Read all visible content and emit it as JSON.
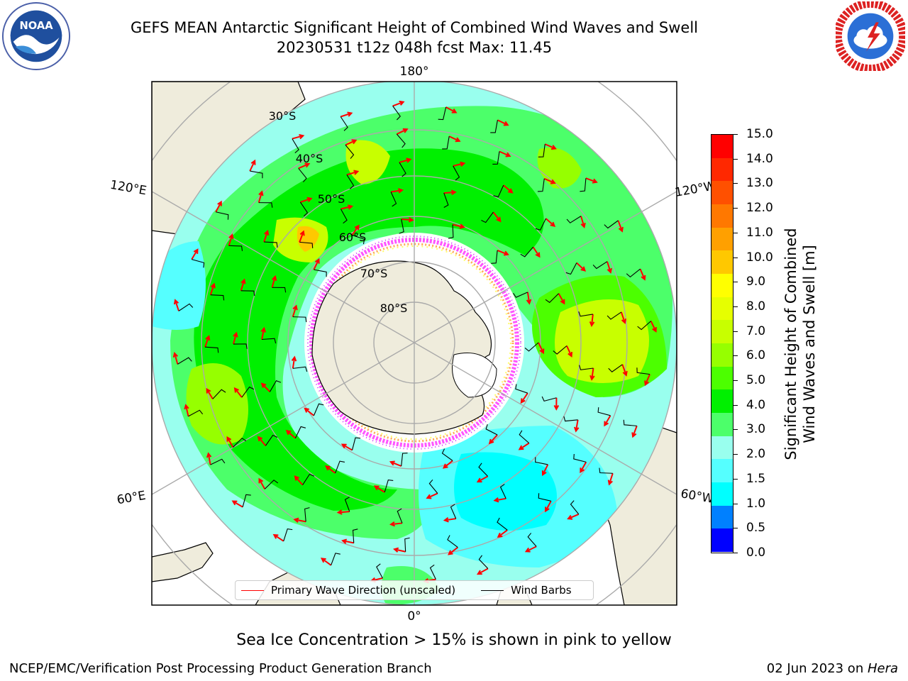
{
  "title_line1": "GEFS MEAN Antarctic Significant Height of Combined Wind Waves and Swell",
  "title_line2": "20230531 t12z 048h fcst   Max: 11.45",
  "logos": {
    "left": "noaa-logo",
    "right": "national-weather-service-logo",
    "left_text": "NOAA"
  },
  "map": {
    "projection": "south-polar-stereographic",
    "lon_labels": [
      "180°",
      "120°E",
      "120°W",
      "60°E",
      "60°W",
      "0°"
    ],
    "lat_labels": [
      "30°S",
      "40°S",
      "50°S",
      "60°S",
      "70°S",
      "80°S"
    ],
    "land_color": "#efecdc",
    "ice_colors": [
      "#ff55ff",
      "#cc33ff",
      "#ffaa55",
      "#ffff66"
    ]
  },
  "legend": {
    "wave_label": "Primary Wave Direction (unscaled)",
    "wave_color": "#ff0000",
    "barb_label": "Wind Barbs",
    "barb_color": "#000000"
  },
  "colorbar": {
    "label_line1": "Significant Height of Combined",
    "label_line2": "Wind Waves and Swell [m]",
    "ticks": [
      "15.0",
      "14.0",
      "13.0",
      "12.0",
      "11.0",
      "10.0",
      "9.0",
      "8.0",
      "7.0",
      "6.0",
      "5.0",
      "4.0",
      "3.0",
      "2.0",
      "1.5",
      "1.0",
      "0.5",
      "0.0"
    ],
    "colors_top_to_bottom": [
      "#ff0000",
      "#ff2800",
      "#ff5000",
      "#ff7800",
      "#ffa000",
      "#ffc800",
      "#ffff00",
      "#e6ff00",
      "#c8ff00",
      "#96ff00",
      "#4cff00",
      "#00f000",
      "#4cff6a",
      "#99ffee",
      "#55ffff",
      "#00ffff",
      "#0080ff",
      "#0000ff"
    ]
  },
  "ice_note": "Sea Ice Concentration > 15% is shown in pink to yellow",
  "footer_left": "NCEP/EMC/Verification Post Processing Product Generation Branch",
  "footer_right_date": "02 Jun 2023 on ",
  "footer_right_host": "Hera"
}
